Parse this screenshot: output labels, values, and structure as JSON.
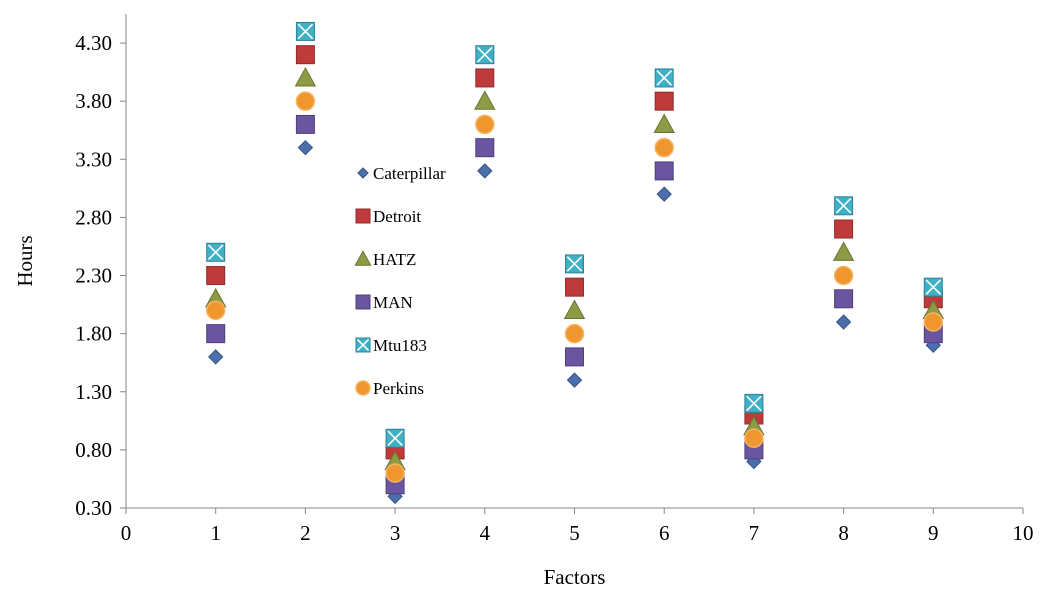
{
  "chart_data": {
    "type": "scatter",
    "title": "",
    "xlabel": "Factors",
    "ylabel": "Hours",
    "xlim": [
      0,
      10
    ],
    "ylim": [
      0.3,
      4.55
    ],
    "x_ticks": [
      0,
      1,
      2,
      3,
      4,
      5,
      6,
      7,
      8,
      9,
      10
    ],
    "x_tick_labels": [
      "0",
      "1",
      "2",
      "3",
      "4",
      "5",
      "6",
      "7",
      "8",
      "9",
      "10"
    ],
    "y_ticks": [
      0.3,
      0.8,
      1.3,
      1.8,
      2.3,
      2.8,
      3.3,
      3.8,
      4.3
    ],
    "y_tick_labels": [
      "0.30",
      "0.80",
      "1.30",
      "1.80",
      "2.30",
      "2.80",
      "3.30",
      "3.80",
      "4.30"
    ],
    "grid": false,
    "legend_position": "center-left inside plot",
    "x": [
      1,
      2,
      3,
      4,
      5,
      6,
      7,
      8,
      9
    ],
    "series": [
      {
        "name": "Caterpillar",
        "marker": "diamond",
        "color": "#4a6fac",
        "values": [
          1.6,
          3.4,
          0.4,
          3.2,
          1.4,
          3.0,
          0.7,
          1.9,
          1.7
        ]
      },
      {
        "name": "Detroit",
        "marker": "square",
        "color": "#bf3b3b",
        "values": [
          2.3,
          4.2,
          0.8,
          4.0,
          2.2,
          3.8,
          1.1,
          2.7,
          2.1
        ]
      },
      {
        "name": "HATZ",
        "marker": "triangle",
        "color": "#8f9a44",
        "values": [
          2.1,
          4.0,
          0.7,
          3.8,
          2.0,
          3.6,
          1.0,
          2.5,
          2.0
        ]
      },
      {
        "name": "MAN",
        "marker": "square",
        "color": "#6a55a0",
        "values": [
          1.8,
          3.6,
          0.5,
          3.4,
          1.6,
          3.2,
          0.8,
          2.1,
          1.8
        ]
      },
      {
        "name": "Mtu183",
        "marker": "square-x",
        "color": "#3fb0c6",
        "values": [
          2.5,
          4.4,
          0.9,
          4.2,
          2.4,
          4.0,
          1.2,
          2.9,
          2.2
        ]
      },
      {
        "name": "Perkins",
        "marker": "circle",
        "color": "#f0962f",
        "values": [
          2.0,
          3.8,
          0.6,
          3.6,
          1.8,
          3.4,
          0.9,
          2.3,
          1.9
        ]
      }
    ]
  }
}
